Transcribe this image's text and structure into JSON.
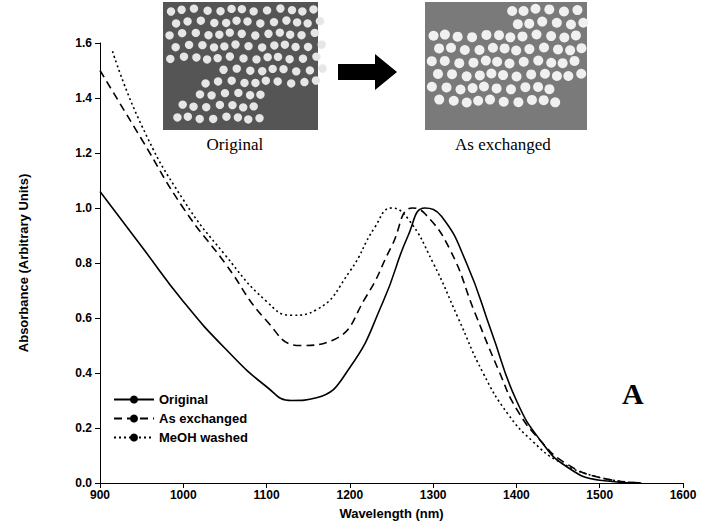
{
  "chart_data": {
    "type": "line",
    "xlabel": "Wavelength (nm)",
    "ylabel": "Absorbance (Arbitrary Units)",
    "xlim": [
      900,
      1600
    ],
    "xticks": [
      900,
      1000,
      1100,
      1200,
      1300,
      1400,
      1500,
      1600
    ],
    "ylim": [
      0,
      1.6
    ],
    "yticks": [
      {
        "value": 0,
        "label": "0.0"
      },
      0.2,
      0.4,
      0.6,
      0.8,
      {
        "value": 1,
        "label": "1.0"
      },
      1.2,
      1.4,
      1.6
    ],
    "grid": false,
    "legend": "lower left",
    "panel_label": "A",
    "insets": [
      {
        "caption": "Original"
      },
      {
        "caption": "As exchanged"
      }
    ],
    "series": [
      {
        "name": "Original",
        "color": "#000000",
        "line_style": "solid",
        "x": [
          900,
          950,
          1000,
          1050,
          1100,
          1130,
          1160,
          1200,
          1240,
          1270,
          1290,
          1310,
          1340,
          1370,
          1400,
          1430,
          1460,
          1500,
          1550
        ],
        "values": [
          1.06,
          0.86,
          0.66,
          0.49,
          0.35,
          0.3,
          0.31,
          0.42,
          0.66,
          0.9,
          1.0,
          0.97,
          0.8,
          0.55,
          0.3,
          0.15,
          0.06,
          0.01,
          0.0
        ]
      },
      {
        "name": "As exchanged",
        "color": "#000000",
        "line_style": "dashed",
        "x": [
          900,
          950,
          1000,
          1050,
          1100,
          1140,
          1180,
          1220,
          1250,
          1275,
          1290,
          1320,
          1350,
          1380,
          1400,
          1430,
          1460,
          1500,
          1550
        ],
        "values": [
          1.5,
          1.25,
          1.0,
          0.8,
          0.59,
          0.5,
          0.52,
          0.68,
          0.86,
          1.0,
          0.98,
          0.85,
          0.62,
          0.4,
          0.27,
          0.15,
          0.07,
          0.02,
          0.0
        ]
      },
      {
        "name": "MeOH washed",
        "color": "#000000",
        "line_style": "dotted",
        "x": [
          915,
          950,
          1000,
          1050,
          1100,
          1130,
          1160,
          1200,
          1230,
          1250,
          1270,
          1300,
          1330,
          1360,
          1390,
          1420,
          1450,
          1500,
          1550
        ],
        "values": [
          1.57,
          1.3,
          1.03,
          0.83,
          0.66,
          0.61,
          0.63,
          0.77,
          0.93,
          1.0,
          0.96,
          0.8,
          0.6,
          0.4,
          0.25,
          0.15,
          0.08,
          0.02,
          0.0
        ]
      }
    ]
  }
}
